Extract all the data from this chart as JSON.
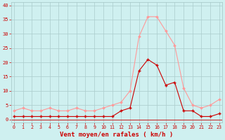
{
  "x": [
    0,
    1,
    2,
    3,
    4,
    5,
    6,
    7,
    8,
    9,
    10,
    11,
    12,
    13,
    14,
    15,
    16,
    17,
    18,
    19,
    20,
    21,
    22,
    23
  ],
  "mean_wind": [
    1,
    1,
    1,
    1,
    1,
    1,
    1,
    1,
    1,
    1,
    1,
    1,
    3,
    4,
    17,
    21,
    19,
    12,
    13,
    3,
    3,
    1,
    1,
    2
  ],
  "gust_wind": [
    3,
    4,
    3,
    3,
    4,
    3,
    3,
    4,
    3,
    3,
    4,
    5,
    6,
    10,
    29,
    36,
    36,
    31,
    26,
    11,
    5,
    4,
    5,
    7
  ],
  "bg_color": "#cff0f0",
  "grid_color": "#aacccc",
  "mean_color": "#cc0000",
  "gust_color": "#ff9999",
  "xlabel": "Vent moyen/en rafales ( km/h )",
  "ytick_labels": [
    "0",
    "5",
    "10",
    "15",
    "20",
    "25",
    "30",
    "35",
    "40"
  ],
  "ytick_values": [
    0,
    5,
    10,
    15,
    20,
    25,
    30,
    35,
    40
  ],
  "xtick_labels": [
    "0",
    "1",
    "2",
    "3",
    "4",
    "5",
    "6",
    "7",
    "8",
    "9",
    "10",
    "11",
    "12",
    "13",
    "14",
    "15",
    "16",
    "17",
    "18",
    "19",
    "20",
    "21",
    "22",
    "23"
  ],
  "xtick_values": [
    0,
    1,
    2,
    3,
    4,
    5,
    6,
    7,
    8,
    9,
    10,
    11,
    12,
    13,
    14,
    15,
    16,
    17,
    18,
    19,
    20,
    21,
    22,
    23
  ],
  "ylim": [
    -1,
    41
  ],
  "xlim": [
    -0.3,
    23.3
  ]
}
